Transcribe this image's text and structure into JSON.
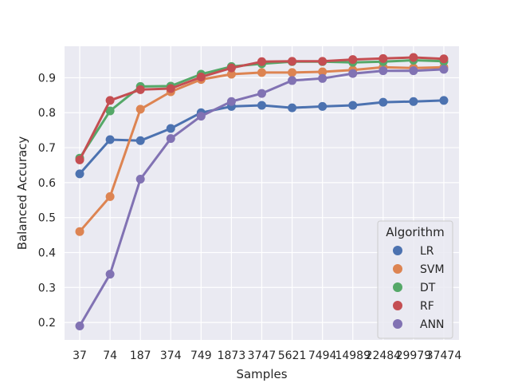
{
  "chart_data": {
    "type": "line",
    "xlabel": "Samples",
    "ylabel": "Balanced Accuracy",
    "categories": [
      "37",
      "74",
      "187",
      "374",
      "749",
      "1873",
      "3747",
      "5621",
      "7494",
      "14989",
      "22484",
      "29979",
      "37474"
    ],
    "ylim": [
      0.15,
      0.99
    ],
    "yticks": [
      "0.2",
      "0.3",
      "0.4",
      "0.5",
      "0.6",
      "0.7",
      "0.8",
      "0.9"
    ],
    "grid": true,
    "legend": {
      "title": "Algorithm",
      "position": "lower-right"
    },
    "series": [
      {
        "name": "LR",
        "color": "#4c72b0",
        "values": [
          0.625,
          0.723,
          0.72,
          0.755,
          0.8,
          0.818,
          0.821,
          0.814,
          0.818,
          0.821,
          0.83,
          0.832,
          0.835
        ]
      },
      {
        "name": "SVM",
        "color": "#dd8452",
        "values": [
          0.46,
          0.56,
          0.81,
          0.86,
          0.895,
          0.91,
          0.915,
          0.915,
          0.917,
          0.922,
          0.93,
          0.928,
          0.93
        ]
      },
      {
        "name": "DT",
        "color": "#55a868",
        "values": [
          0.67,
          0.805,
          0.875,
          0.876,
          0.91,
          0.932,
          0.94,
          0.946,
          0.946,
          0.944,
          0.946,
          0.95,
          0.947
        ]
      },
      {
        "name": "RF",
        "color": "#c44e52",
        "values": [
          0.665,
          0.835,
          0.866,
          0.869,
          0.902,
          0.928,
          0.946,
          0.947,
          0.947,
          0.952,
          0.955,
          0.958,
          0.954
        ]
      },
      {
        "name": "ANN",
        "color": "#8172b3",
        "values": [
          0.19,
          0.338,
          0.61,
          0.726,
          0.79,
          0.832,
          0.855,
          0.892,
          0.898,
          0.912,
          0.92,
          0.92,
          0.924
        ]
      }
    ]
  }
}
